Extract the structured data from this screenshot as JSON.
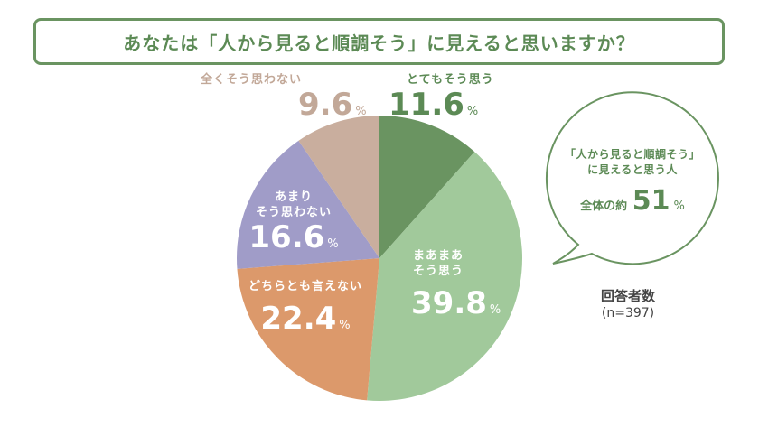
{
  "title": "あなたは「人から見ると順調そう」に見えると思いますか？",
  "chart_data": {
    "type": "pie",
    "title": "あなたは「人から見ると順調そう」に見えると思いますか？",
    "categories": [
      "とてもそう思う",
      "まあまあそう思う",
      "どちらとも言えない",
      "あまりそう思わない",
      "全くそう思わない"
    ],
    "values": [
      11.6,
      39.8,
      22.4,
      16.6,
      9.6
    ],
    "unit": "%",
    "colors": [
      "#6a9461",
      "#a1c99b",
      "#dc996b",
      "#a09cc8",
      "#c9ae9e"
    ],
    "start_angle": "12 o'clock, clockwise",
    "n": 397
  },
  "labels": {
    "strongly_agree": {
      "category": "とてもそう思う",
      "value": "11.6",
      "pct": "%"
    },
    "somewhat_agree": {
      "line1": "まあまあ",
      "line2": "そう思う",
      "value": "39.8",
      "pct": "%"
    },
    "neutral": {
      "category": "どちらとも言えない",
      "value": "22.4",
      "pct": "%"
    },
    "somewhat_disagree": {
      "line1": "あまり",
      "line2": "そう思わない",
      "value": "16.6",
      "pct": "%"
    },
    "strongly_disagree": {
      "category": "全くそう思わない",
      "value": "9.6",
      "pct": "%"
    }
  },
  "bubble": {
    "line1": "「人から見ると順調そう」",
    "line2": "に見えると思う人",
    "prefix": "全体の約",
    "value": "51",
    "pct": "%"
  },
  "respondents": {
    "label": "回答者数",
    "count": "(n=397)"
  },
  "colors": {
    "accent": "#6a9461",
    "title_text": "#5c8a55",
    "label_disagree": "#c2a898"
  }
}
